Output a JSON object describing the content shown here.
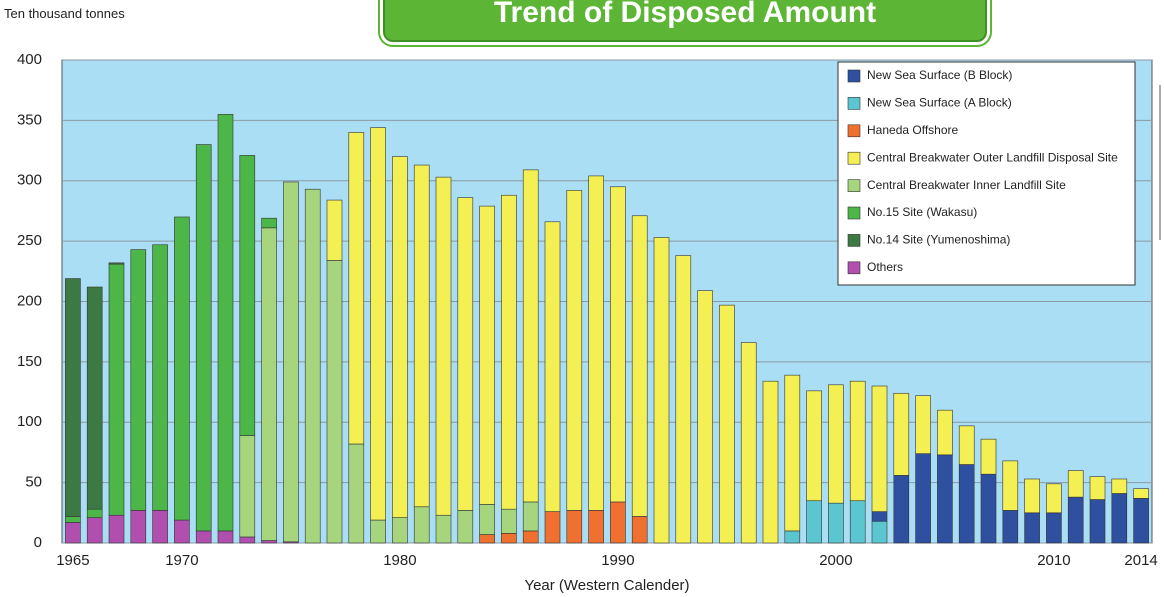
{
  "chart_data": {
    "type": "stacked_bar",
    "title": "Trend of Disposed Amount",
    "ylabel": "Ten thousand tonnes",
    "xlabel": "Year (Western Calender)",
    "categories": [
      "1965",
      null,
      null,
      null,
      null,
      "1970",
      null,
      null,
      null,
      null,
      null,
      null,
      null,
      null,
      null,
      "1980",
      null,
      null,
      null,
      null,
      null,
      null,
      null,
      null,
      null,
      "1990",
      null,
      null,
      null,
      null,
      null,
      null,
      null,
      null,
      null,
      "2000",
      null,
      null,
      null,
      null,
      null,
      null,
      null,
      null,
      null,
      "2010",
      null,
      null,
      null,
      "2014"
    ],
    "ylim": [
      0,
      400
    ],
    "yticks": [
      0,
      50,
      100,
      150,
      200,
      250,
      300,
      350,
      400
    ],
    "grid": true,
    "series": [
      {
        "name": "New Sea Surface (B Block)",
        "color": "#2f4f9f",
        "values": [
          null,
          null,
          null,
          null,
          null,
          null,
          null,
          null,
          null,
          null,
          null,
          null,
          null,
          null,
          null,
          null,
          null,
          null,
          null,
          null,
          null,
          null,
          null,
          null,
          null,
          null,
          null,
          null,
          null,
          null,
          null,
          null,
          null,
          null,
          null,
          null,
          null,
          8,
          56,
          74,
          73,
          65,
          57,
          27,
          25,
          25,
          38,
          36,
          41,
          37
        ]
      },
      {
        "name": "New Sea Surface (A Block)",
        "color": "#5cc6d0",
        "values": [
          null,
          null,
          null,
          null,
          null,
          null,
          null,
          null,
          null,
          null,
          null,
          null,
          null,
          null,
          null,
          null,
          null,
          null,
          null,
          null,
          null,
          null,
          null,
          null,
          null,
          null,
          null,
          null,
          null,
          null,
          null,
          null,
          null,
          10,
          35,
          33,
          35,
          18,
          null,
          null,
          null,
          null,
          null,
          null,
          null,
          null,
          null,
          null,
          null,
          null
        ]
      },
      {
        "name": "Haneda Offshore",
        "color": "#f07030",
        "values": [
          null,
          null,
          null,
          null,
          null,
          null,
          null,
          null,
          null,
          null,
          null,
          null,
          null,
          null,
          null,
          null,
          null,
          null,
          null,
          7,
          8,
          10,
          26,
          27,
          27,
          34,
          22,
          null,
          null,
          null,
          null,
          null,
          null,
          null,
          null,
          null,
          null,
          null,
          null,
          null,
          null,
          null,
          null,
          null,
          null,
          null,
          null,
          null,
          null,
          null
        ]
      },
      {
        "name": "Central Breakwater Outer Landfill Disposal Site",
        "color": "#f4ef52",
        "values": [
          null,
          null,
          null,
          null,
          null,
          null,
          null,
          null,
          null,
          null,
          null,
          null,
          50,
          258,
          325,
          299,
          283,
          280,
          259,
          247,
          260,
          275,
          240,
          265,
          277,
          261,
          249,
          253,
          238,
          209,
          197,
          166,
          134,
          129,
          91,
          98,
          99,
          104,
          68,
          48,
          37,
          32,
          29,
          41,
          28,
          24,
          22,
          19,
          12,
          8
        ]
      },
      {
        "name": "Central Breakwater Inner Landfill Site",
        "color": "#a6d57e",
        "values": [
          null,
          null,
          null,
          null,
          null,
          null,
          null,
          null,
          84,
          259,
          298,
          293,
          234,
          82,
          19,
          21,
          30,
          23,
          27,
          25,
          20,
          24,
          null,
          null,
          null,
          null,
          null,
          null,
          null,
          null,
          null,
          null,
          null,
          null,
          null,
          null,
          null,
          null,
          null,
          null,
          null,
          null,
          null,
          null,
          null,
          null,
          null,
          null,
          null,
          null
        ]
      },
      {
        "name": "No.15 Site (Wakasu)",
        "color": "#4cb648",
        "values": [
          5,
          7,
          208,
          216,
          220,
          251,
          320,
          345,
          232,
          8,
          null,
          null,
          null,
          null,
          null,
          null,
          null,
          null,
          null,
          null,
          null,
          null,
          null,
          null,
          null,
          null,
          null,
          null,
          null,
          null,
          null,
          null,
          null,
          null,
          null,
          null,
          null,
          null,
          null,
          null,
          null,
          null,
          null,
          null,
          null,
          null,
          null,
          null,
          null,
          null
        ]
      },
      {
        "name": "No.14 Site (Yumenoshima)",
        "color": "#3d7a43",
        "values": [
          197,
          184,
          1,
          null,
          null,
          null,
          null,
          null,
          null,
          null,
          null,
          null,
          null,
          null,
          null,
          null,
          null,
          null,
          null,
          null,
          null,
          null,
          null,
          null,
          null,
          null,
          null,
          null,
          null,
          null,
          null,
          null,
          null,
          null,
          null,
          null,
          null,
          null,
          null,
          null,
          null,
          null,
          null,
          null,
          null,
          null,
          null,
          null,
          null,
          null
        ]
      },
      {
        "name": "Others",
        "color": "#b04fae",
        "values": [
          17,
          21,
          23,
          27,
          27,
          19,
          10,
          10,
          5,
          2,
          1,
          null,
          null,
          null,
          null,
          null,
          null,
          null,
          null,
          null,
          null,
          null,
          null,
          null,
          null,
          null,
          null,
          null,
          null,
          null,
          null,
          null,
          null,
          null,
          null,
          null,
          null,
          null,
          null,
          null,
          null,
          null,
          null,
          null,
          null,
          null,
          null,
          null,
          null,
          null
        ]
      }
    ]
  }
}
